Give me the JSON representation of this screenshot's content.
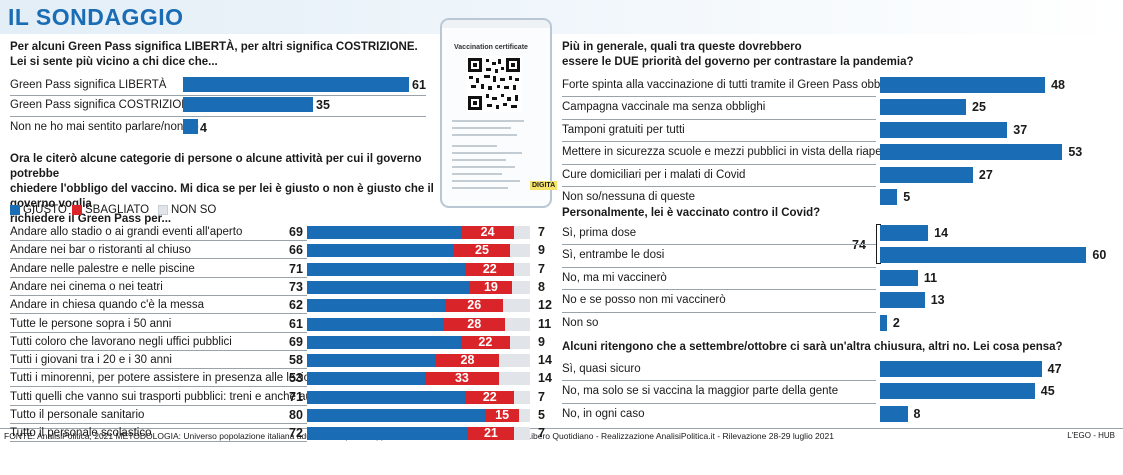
{
  "header": {
    "title": "IL SONDAGGIO"
  },
  "colors": {
    "blue": "#1a6db5",
    "red": "#d9252a",
    "grey": "#e1e5ea"
  },
  "phone": {
    "title": "Vaccination certificate",
    "brand_label": "DIGITA",
    "icon": "qr-code-icon"
  },
  "legend": {
    "giusto": "GIUSTO",
    "sbagliato": "SBAGLIATO",
    "non_so": "NON SO"
  },
  "q1": {
    "question": [
      "Per alcuni Green Pass significa LIBERTÀ, per altri significa COSTRIZIONE.",
      "Lei si sente più vicino a chi dice che..."
    ],
    "items": [
      {
        "label": "Green Pass significa LIBERTÀ",
        "value": "61"
      },
      {
        "label": "Green Pass significa COSTRIZIONE",
        "value": "35"
      },
      {
        "label": "Non ne ho mai sentito parlare/non so",
        "value": "4"
      }
    ]
  },
  "q2": {
    "question": [
      "Ora le citerò alcune categorie di persone o alcune attività per cui il governo potrebbe",
      "chiedere l'obbligo del vaccino. Mi dica se per lei è giusto o non è giusto che il governo voglia",
      "richiedere il Green Pass per..."
    ]
  },
  "q3": {
    "question": [
      "Più in generale, quali tra queste dovrebbero",
      "essere le DUE priorità del governo per contrastare la pandemia?"
    ],
    "items": [
      {
        "label": "Forte spinta alla vaccinazione di tutti tramite il Green Pass obbligatorio",
        "value": "48"
      },
      {
        "label": "Campagna vaccinale ma senza obblighi",
        "value": "25"
      },
      {
        "label": "Tamponi gratuiti per tutti",
        "value": "37"
      },
      {
        "label": "Mettere in sicurezza scuole e mezzi pubblici in vista della riapertura",
        "value": "53"
      },
      {
        "label": "Cure domiciliari per i malati di Covid",
        "value": "27"
      },
      {
        "label": "Non so/nessuna di queste",
        "value": "5"
      }
    ]
  },
  "q4": {
    "question": "Personalmente, lei è vaccinato contro il Covid?",
    "bracket_total": "74",
    "items": [
      {
        "label": "Sì, prima dose",
        "value": "14"
      },
      {
        "label": "Sì, entrambe le dosi",
        "value": "60"
      },
      {
        "label": "No, ma mi vaccinerò",
        "value": "11"
      },
      {
        "label": "No e se posso non mi vaccinerò",
        "value": "13"
      },
      {
        "label": "Non so",
        "value": "2"
      }
    ]
  },
  "q5": {
    "question": "Alcuni ritengono che a settembre/ottobre ci sarà un'altra chiusura, altri no. Lei cosa pensa?",
    "items": [
      {
        "label": "Sì, quasi sicuro",
        "value": "47"
      },
      {
        "label": "No, ma solo se si vaccina la maggior parte della gente",
        "value": "45"
      },
      {
        "label": "No, in ogni caso",
        "value": "8"
      }
    ]
  },
  "footer": {
    "source": "FONTE: AnalisiPolitica, 2021   METODOLOGIA: Universo popolazione italiana adulta - Campione rappresentativo, 1000 casi - Committente Libero Quotidiano - Realizzazione AnalisiPolitica.it - Rilevazione 28-29 luglio 2021",
    "credit": "L'EGO - HUB"
  },
  "chart_data": [
    {
      "type": "bar",
      "orientation": "horizontal",
      "title": "Per alcuni Green Pass significa LIBERTÀ, per altri significa COSTRIZIONE. Lei si sente più vicino a chi dice che...",
      "categories": [
        "Green Pass significa LIBERTÀ",
        "Green Pass significa COSTRIZIONE",
        "Non ne ho mai sentito parlare/non so"
      ],
      "values": [
        61,
        35,
        4
      ],
      "xlim": [
        0,
        100
      ]
    },
    {
      "type": "bar",
      "orientation": "horizontal",
      "stacked": true,
      "title": "Ora le citerò alcune categorie di persone o alcune attività per cui il governo potrebbe chiedere l'obbligo del vaccino. Mi dica se per lei è giusto o non è giusto che il governo voglia richiedere il Green Pass per...",
      "categories": [
        "Andare allo stadio o ai grandi eventi all'aperto",
        "Andare nei bar o ristoranti al chiuso",
        "Andare nelle palestre e nelle piscine",
        "Andare nei cinema o nei teatri",
        "Andare in chiesa quando c'è la messa",
        "Tutte le persone sopra i 50 anni",
        "Tutti coloro che lavorano negli uffici pubblici",
        "Tutti i giovani tra i 20 e i 30 anni",
        "Tutti i minorenni, per potere assistere in presenza alle lezioni di scuola",
        "Tutti quelli che vanno sui trasporti pubblici: treni e anche autobus",
        "Tutto il personale sanitario",
        "Tutto il personale scolastico"
      ],
      "series": [
        {
          "name": "GIUSTO",
          "values": [
            69,
            66,
            71,
            73,
            62,
            61,
            69,
            58,
            53,
            71,
            80,
            72
          ]
        },
        {
          "name": "SBAGLIATO",
          "values": [
            24,
            25,
            22,
            19,
            26,
            28,
            22,
            28,
            33,
            22,
            15,
            21
          ]
        },
        {
          "name": "NON SO",
          "values": [
            7,
            9,
            7,
            8,
            12,
            11,
            9,
            14,
            14,
            7,
            5,
            7
          ]
        }
      ],
      "xlim": [
        0,
        100
      ],
      "legend_position": "top-left"
    },
    {
      "type": "bar",
      "orientation": "horizontal",
      "title": "Più in generale, quali tra queste dovrebbero essere le DUE priorità del governo per contrastare la pandemia?",
      "categories": [
        "Forte spinta alla vaccinazione di tutti tramite il Green Pass obbligatorio",
        "Campagna vaccinale ma senza obblighi",
        "Tamponi gratuiti per tutti",
        "Mettere in sicurezza scuole e mezzi pubblici in vista della riapertura",
        "Cure domiciliari per i malati di Covid",
        "Non so/nessuna di queste"
      ],
      "values": [
        48,
        25,
        37,
        53,
        27,
        5
      ],
      "xlim": [
        0,
        100
      ]
    },
    {
      "type": "bar",
      "orientation": "horizontal",
      "title": "Personalmente, lei è vaccinato contro il Covid?",
      "categories": [
        "Sì, prima dose",
        "Sì, entrambe le dosi",
        "No, ma mi vaccinerò",
        "No e se posso non mi vaccinerò",
        "Non so"
      ],
      "values": [
        14,
        60,
        11,
        13,
        2
      ],
      "annotations": [
        "74"
      ],
      "xlim": [
        0,
        100
      ]
    },
    {
      "type": "bar",
      "orientation": "horizontal",
      "title": "Alcuni ritengono che a settembre/ottobre ci sarà un'altra chiusura, altri no. Lei cosa pensa?",
      "categories": [
        "Sì, quasi sicuro",
        "No, ma solo se si vaccina la maggior parte della gente",
        "No, in ogni caso"
      ],
      "values": [
        47,
        45,
        8
      ],
      "xlim": [
        0,
        100
      ]
    }
  ]
}
